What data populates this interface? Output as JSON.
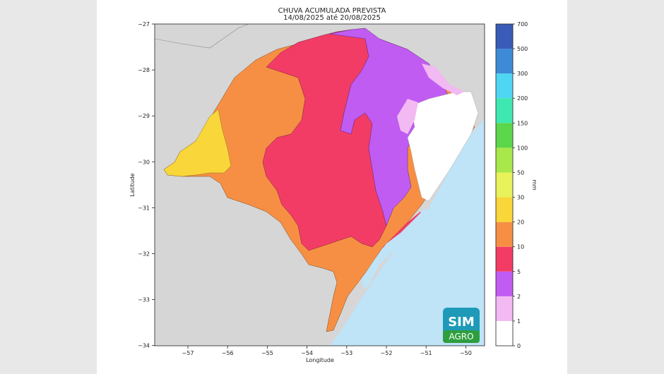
{
  "title_line1": "CHUVA ACUMULADA PREVISTA",
  "title_line2": "14/08/2025 até 20/08/2025",
  "xlabel": "Longitude",
  "ylabel": "Latitude",
  "x_ticks": [
    "−57",
    "−56",
    "−55",
    "−54",
    "−53",
    "−52",
    "−51",
    "−50"
  ],
  "y_ticks": [
    "−27",
    "−28",
    "−29",
    "−30",
    "−31",
    "−32",
    "−33",
    "−34"
  ],
  "colorbar": {
    "unit": "mm",
    "levels": [
      "0",
      "1",
      "2",
      "5",
      "10",
      "20",
      "30",
      "50",
      "100",
      "150",
      "200",
      "300",
      "500",
      "700"
    ],
    "colors": [
      "#ffffff",
      "#f2b9f2",
      "#c05cf2",
      "#f23c66",
      "#f68f44",
      "#f9d63a",
      "#e8f25a",
      "#a8e84a",
      "#5cd64a",
      "#3ee8b0",
      "#4ed6f2",
      "#3e8ad6",
      "#3a5cb8"
    ]
  },
  "logo": {
    "line1": "SIM",
    "line2": "AGRO"
  },
  "colors": {
    "land_outside": "#d6d6d6",
    "ocean": "#bfe3f7"
  }
}
